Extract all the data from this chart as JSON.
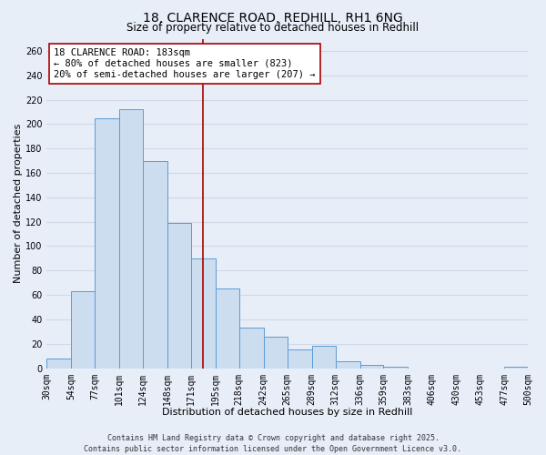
{
  "title": "18, CLARENCE ROAD, REDHILL, RH1 6NG",
  "subtitle": "Size of property relative to detached houses in Redhill",
  "xlabel": "Distribution of detached houses by size in Redhill",
  "ylabel": "Number of detached properties",
  "bin_edges": [
    30,
    54,
    77,
    101,
    124,
    148,
    171,
    195,
    218,
    242,
    265,
    289,
    312,
    336,
    359,
    383,
    406,
    430,
    453,
    477,
    500
  ],
  "bar_heights": [
    8,
    63,
    205,
    212,
    170,
    119,
    90,
    65,
    33,
    26,
    15,
    18,
    6,
    3,
    1,
    0,
    0,
    0,
    0,
    1
  ],
  "bar_facecolor": "#ccddf0",
  "bar_edgecolor": "#5b9bd5",
  "vline_x": 183,
  "vline_color": "#aa0000",
  "ylim": [
    0,
    270
  ],
  "yticks": [
    0,
    20,
    40,
    60,
    80,
    100,
    120,
    140,
    160,
    180,
    200,
    220,
    240,
    260
  ],
  "annotation_title": "18 CLARENCE ROAD: 183sqm",
  "annotation_line1": "← 80% of detached houses are smaller (823)",
  "annotation_line2": "20% of semi-detached houses are larger (207) →",
  "background_color": "#e8eef8",
  "grid_color": "#d0d8e8",
  "footer_line1": "Contains HM Land Registry data © Crown copyright and database right 2025.",
  "footer_line2": "Contains public sector information licensed under the Open Government Licence v3.0.",
  "title_fontsize": 10,
  "subtitle_fontsize": 8.5,
  "xlabel_fontsize": 8,
  "ylabel_fontsize": 8,
  "tick_fontsize": 7,
  "annotation_fontsize": 7.5,
  "footer_fontsize": 6
}
